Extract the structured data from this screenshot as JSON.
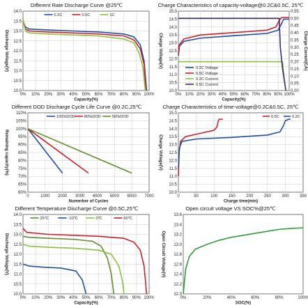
{
  "chart_data": [
    {
      "id": "p1",
      "type": "line",
      "title": "Different Rate Discharge Curve @25℃",
      "xlabel": "Capacity(%)",
      "ylabel": "Discharge Voltage(V)",
      "xlim": [
        0,
        100
      ],
      "ylim": [
        10.0,
        14.0
      ],
      "xticks": [
        0,
        10,
        20,
        30,
        40,
        50,
        60,
        70,
        80,
        90,
        100
      ],
      "xtick_labels": [
        "0%",
        "10%",
        "20%",
        "30%",
        "40%",
        "50%",
        "60%",
        "70%",
        "80%",
        "90%",
        "100%"
      ],
      "yticks": [
        10.0,
        10.5,
        11.0,
        11.5,
        12.0,
        12.5,
        13.0,
        13.5,
        14.0
      ],
      "ytick_labels": [
        "10.0",
        "10.5",
        "11.0",
        "11.5",
        "12.0",
        "12.5",
        "13.0",
        "13.5",
        "14.0"
      ],
      "grid": true,
      "legend": "top-center",
      "series": [
        {
          "name": "0.2C",
          "color": "#1f4e9c",
          "points": [
            [
              0,
              13.5
            ],
            [
              2,
              13.2
            ],
            [
              5,
              13.1
            ],
            [
              20,
              13.05
            ],
            [
              40,
              13.0
            ],
            [
              60,
              12.95
            ],
            [
              80,
              12.85
            ],
            [
              88,
              12.7
            ],
            [
              93,
              12.3
            ],
            [
              96,
              11.5
            ],
            [
              98,
              10.0
            ]
          ]
        },
        {
          "name": "0.5C",
          "color": "#c8202a",
          "points": [
            [
              0,
              13.5
            ],
            [
              2,
              13.1
            ],
            [
              5,
              13.0
            ],
            [
              20,
              12.95
            ],
            [
              40,
              12.9
            ],
            [
              60,
              12.85
            ],
            [
              80,
              12.75
            ],
            [
              88,
              12.55
            ],
            [
              93,
              12.1
            ],
            [
              96,
              11.3
            ],
            [
              97.5,
              10.0
            ]
          ]
        },
        {
          "name": "1C",
          "color": "#8cbf3f",
          "points": [
            [
              0,
              13.6
            ],
            [
              2,
              13.0
            ],
            [
              5,
              12.9
            ],
            [
              20,
              12.85
            ],
            [
              40,
              12.8
            ],
            [
              60,
              12.75
            ],
            [
              80,
              12.6
            ],
            [
              88,
              12.4
            ],
            [
              92,
              11.9
            ],
            [
              95,
              11.2
            ],
            [
              97,
              10.0
            ]
          ]
        }
      ]
    },
    {
      "id": "p2",
      "type": "line",
      "title": "Charge Characteristics of capacity-voltage@0.2C&0.5C, 25℃",
      "xlabel": "Capacity(%)",
      "ylabel": "Charge Voltage(V)",
      "y2label": "Charge Current(CA)",
      "xlim": [
        0,
        100
      ],
      "ylim": [
        10.0,
        15.0
      ],
      "y2lim": [
        0,
        0.55
      ],
      "xticks": [
        0,
        10,
        20,
        30,
        40,
        50,
        60,
        70,
        80,
        90,
        100
      ],
      "xtick_labels": [
        "0%",
        "10%",
        "20%",
        "30%",
        "40%",
        "50%",
        "60%",
        "70%",
        "80%",
        "90%",
        "100%"
      ],
      "yticks": [
        10.0,
        10.5,
        11.0,
        11.5,
        12.0,
        12.5,
        13.0,
        13.5,
        14.0,
        14.5,
        15.0
      ],
      "ytick_labels": [
        "10.0",
        "10.5",
        "11.0",
        "11.5",
        "12.0",
        "12.5",
        "13.0",
        "13.5",
        "14.0",
        "14.5",
        "15.0"
      ],
      "y2ticks": [
        0,
        0.05,
        0.1,
        0.15,
        0.2,
        0.25,
        0.3,
        0.35,
        0.4,
        0.45,
        0.5,
        0.55
      ],
      "y2tick_labels": [
        "0.00",
        "0.05",
        "0.10",
        "0.15",
        "0.20",
        "0.25",
        "0.30",
        "0.35",
        "0.40",
        "0.45",
        "0.50",
        "0.55"
      ],
      "grid": true,
      "legend": "bottom-left",
      "series": [
        {
          "name": "0.2C Voltage",
          "color": "#1f4e9c",
          "axis": "y",
          "points": [
            [
              0,
              12.2
            ],
            [
              1,
              12.8
            ],
            [
              5,
              13.1
            ],
            [
              20,
              13.3
            ],
            [
              40,
              13.4
            ],
            [
              60,
              13.5
            ],
            [
              80,
              13.6
            ],
            [
              90,
              13.8
            ],
            [
              93,
              14.2
            ],
            [
              95,
              14.5
            ],
            [
              100,
              14.5
            ]
          ]
        },
        {
          "name": "0.5C Voltage",
          "color": "#c8202a",
          "axis": "y",
          "points": [
            [
              0,
              12.3
            ],
            [
              1,
              12.9
            ],
            [
              5,
              13.25
            ],
            [
              20,
              13.5
            ],
            [
              40,
              13.6
            ],
            [
              60,
              13.7
            ],
            [
              80,
              13.8
            ],
            [
              88,
              14.0
            ],
            [
              91,
              14.4
            ],
            [
              93,
              14.6
            ],
            [
              100,
              14.6
            ]
          ]
        },
        {
          "name": "0.2C Current",
          "color": "#8cbf3f",
          "axis": "y2",
          "points": [
            [
              0,
              0.2
            ],
            [
              94,
              0.2
            ],
            [
              95,
              0.12
            ],
            [
              96,
              0.05
            ],
            [
              97,
              0
            ]
          ]
        },
        {
          "name": "0.5C Current",
          "color": "#3a2a7a",
          "axis": "y2",
          "points": [
            [
              0,
              0.5
            ],
            [
              91,
              0.5
            ],
            [
              92,
              0.3
            ],
            [
              94,
              0.15
            ],
            [
              96,
              0.05
            ],
            [
              97,
              0
            ]
          ]
        }
      ]
    },
    {
      "id": "p3",
      "type": "line",
      "title": "Different DOD Discharge Cycle Life Curve @0.2C,25℃",
      "xlabel": "Numerber of Cycles",
      "ylabel": "Remaining capacity(%)",
      "xlim": [
        0,
        7000
      ],
      "ylim": [
        60,
        110
      ],
      "xticks": [
        0,
        1000,
        2000,
        3000,
        4000,
        5000,
        6000,
        7000
      ],
      "xtick_labels": [
        "0",
        "1000",
        "2000",
        "3000",
        "4000",
        "5000",
        "6000",
        "7000"
      ],
      "yticks": [
        60,
        65,
        70,
        75,
        80,
        85,
        90,
        95,
        100,
        105,
        110
      ],
      "ytick_labels": [
        "60%",
        "65%",
        "70%",
        "75%",
        "80%",
        "85%",
        "90%",
        "95%",
        "100%",
        "105%",
        "110%"
      ],
      "grid": true,
      "legend": "top-center",
      "series": [
        {
          "name": "100%DOD",
          "color": "#1f4e9c",
          "points": [
            [
              0,
              100
            ],
            [
              2000,
              72
            ]
          ]
        },
        {
          "name": "80%DOD",
          "color": "#c8202a",
          "points": [
            [
              0,
              100
            ],
            [
              3500,
              72
            ]
          ]
        },
        {
          "name": "50%DOD",
          "color": "#5e8c2a",
          "points": [
            [
              0,
              100
            ],
            [
              6000,
              72
            ]
          ]
        }
      ]
    },
    {
      "id": "p4",
      "type": "line",
      "title": "Charge Characteristics of time-voltage@0.2C&0.5C, 25℃",
      "xlabel": "Charge time(min)",
      "ylabel": "Charge Voltage(V)",
      "xlim": [
        0,
        350
      ],
      "ylim": [
        10.0,
        15.0
      ],
      "xticks": [
        0,
        50,
        100,
        150,
        200,
        250,
        300,
        350
      ],
      "xtick_labels": [
        "0",
        "50",
        "100",
        "150",
        "200",
        "250",
        "300",
        "350"
      ],
      "yticks": [
        10.0,
        10.5,
        11.0,
        11.5,
        12.0,
        12.5,
        13.0,
        13.5,
        14.0,
        14.5,
        15.0
      ],
      "ytick_labels": [
        "10.0",
        "10.5",
        "11.0",
        "11.5",
        "12.0",
        "12.5",
        "13.0",
        "13.5",
        "14.0",
        "14.5",
        "15.0"
      ],
      "grid": true,
      "legend": "top-right",
      "series": [
        {
          "name": "0.5C",
          "color": "#c8202a",
          "points": [
            [
              0,
              11.0
            ],
            [
              2,
              12.5
            ],
            [
              6,
              13.2
            ],
            [
              20,
              13.5
            ],
            [
              60,
              13.7
            ],
            [
              100,
              13.9
            ],
            [
              108,
              14.1
            ],
            [
              112,
              14.5
            ],
            [
              115,
              14.6
            ],
            [
              125,
              14.6
            ]
          ]
        },
        {
          "name": "0.2C",
          "color": "#1f4e9c",
          "points": [
            [
              0,
              11.5
            ],
            [
              3,
              12.8
            ],
            [
              10,
              13.2
            ],
            [
              50,
              13.35
            ],
            [
              150,
              13.45
            ],
            [
              250,
              13.6
            ],
            [
              285,
              13.8
            ],
            [
              295,
              14.2
            ],
            [
              300,
              14.5
            ],
            [
              310,
              14.6
            ],
            [
              315,
              14.6
            ]
          ]
        }
      ]
    },
    {
      "id": "p5",
      "type": "line",
      "title": "Different Temperature Discharge Curve @0.5C,25℃",
      "xlabel": "Capacity(%)",
      "ylabel": "Discharge Voltage(V)",
      "xlim": [
        0,
        100
      ],
      "ylim": [
        10.0,
        14.0
      ],
      "xticks": [
        0,
        10,
        20,
        30,
        40,
        50,
        60,
        70,
        80,
        90,
        100
      ],
      "xtick_labels": [
        "0%",
        "10%",
        "20%",
        "30%",
        "40%",
        "50%",
        "60%",
        "70%",
        "80%",
        "90%",
        "100%"
      ],
      "yticks": [
        10.0,
        10.5,
        11.0,
        11.5,
        12.0,
        12.5,
        13.0,
        13.5,
        14.0
      ],
      "ytick_labels": [
        "10.0",
        "10.5",
        "11.0",
        "11.5",
        "12.0",
        "12.5",
        "13.0",
        "13.5",
        "14.0"
      ],
      "grid": true,
      "legend": "top-center",
      "series": [
        {
          "name": "25℃",
          "color": "#5e8c2a",
          "points": [
            [
              0,
              12.9
            ],
            [
              5,
              12.85
            ],
            [
              20,
              12.8
            ],
            [
              40,
              12.75
            ],
            [
              55,
              12.65
            ],
            [
              62,
              12.4
            ],
            [
              67,
              11.8
            ],
            [
              70,
              11.0
            ],
            [
              72,
              10.0
            ]
          ]
        },
        {
          "name": "-10℃",
          "color": "#1f4e9c",
          "points": [
            [
              0,
              11.5
            ],
            [
              5,
              11.4
            ],
            [
              15,
              11.35
            ],
            [
              30,
              11.3
            ],
            [
              42,
              11.15
            ],
            [
              47,
              10.7
            ],
            [
              50,
              10.0
            ]
          ]
        },
        {
          "name": "0℃",
          "color": "#8cbf3f",
          "points": [
            [
              0,
              12.5
            ],
            [
              5,
              12.4
            ],
            [
              20,
              12.35
            ],
            [
              40,
              12.3
            ],
            [
              60,
              12.2
            ],
            [
              70,
              12.0
            ],
            [
              76,
              11.4
            ],
            [
              79,
              10.6
            ],
            [
              80,
              10.0
            ]
          ]
        },
        {
          "name": "60℃",
          "color": "#c8202a",
          "points": [
            [
              0,
              13.3
            ],
            [
              3,
              13.1
            ],
            [
              20,
              13.0
            ],
            [
              40,
              12.95
            ],
            [
              60,
              12.9
            ],
            [
              80,
              12.8
            ],
            [
              88,
              12.6
            ],
            [
              93,
              12.2
            ],
            [
              96,
              11.4
            ],
            [
              98,
              10.0
            ]
          ]
        }
      ]
    },
    {
      "id": "p6",
      "type": "line",
      "title": "Open circuit voltage VS SOC%@25℃",
      "xlabel": "SOC(%)",
      "ylabel": "Open Circuit Voltage(V)",
      "xlim": [
        0,
        100
      ],
      "ylim": [
        12.0,
        13.6
      ],
      "xticks": [
        0,
        20,
        40,
        60,
        80,
        100
      ],
      "xtick_labels": [
        "0%",
        "20%",
        "40%",
        "60%",
        "80%",
        "100%"
      ],
      "yticks": [
        12.0,
        12.2,
        12.4,
        12.6,
        12.8,
        13.0,
        13.2,
        13.4,
        13.6
      ],
      "ytick_labels": [
        "12.0",
        "12.2",
        "12.4",
        "12.6",
        "12.8",
        "13.0",
        "13.2",
        "13.4",
        "13.6"
      ],
      "grid": false,
      "legend": "none",
      "series": [
        {
          "name": "OCV",
          "color": "#2e9a3a",
          "points": [
            [
              0,
              12.0
            ],
            [
              2,
              12.5
            ],
            [
              5,
              12.75
            ],
            [
              10,
              12.9
            ],
            [
              20,
              13.0
            ],
            [
              30,
              13.08
            ],
            [
              40,
              13.14
            ],
            [
              50,
              13.18
            ],
            [
              60,
              13.22
            ],
            [
              70,
              13.26
            ],
            [
              80,
              13.3
            ],
            [
              90,
              13.32
            ],
            [
              100,
              13.33
            ]
          ]
        }
      ]
    }
  ]
}
